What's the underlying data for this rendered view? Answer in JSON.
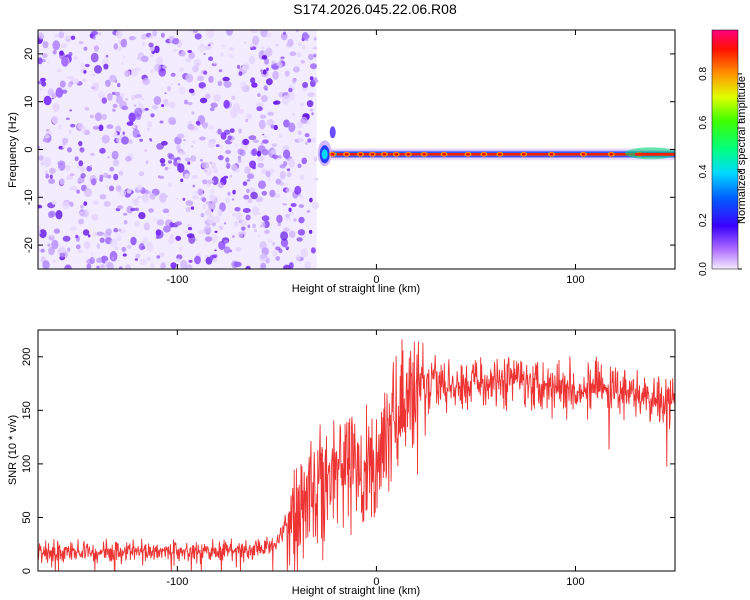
{
  "title": "S174.2026.045.22.06.R08",
  "chart_data": [
    {
      "type": "heatmap",
      "xlabel": "Height of straight line (km)",
      "ylabel": "Frequency (Hz)",
      "xlim": [
        -170,
        150
      ],
      "ylim": [
        -25,
        25
      ],
      "xticks": [
        "-100",
        "0",
        "100"
      ],
      "xtick_values": [
        -100,
        0,
        100
      ],
      "yticks": [
        "20",
        "10",
        "0",
        "-10",
        "-20"
      ],
      "ytick_values": [
        20,
        10,
        0,
        -10,
        -20
      ],
      "noise_region_x": [
        -170,
        -30
      ],
      "carrier_region_x": [
        -30,
        150
      ],
      "carrier_frequency_hz": -1,
      "colorbar": {
        "label": "Normalized spectral amplitude",
        "ticks": [
          "0.0",
          "0.2",
          "0.4",
          "0.6",
          "0.8"
        ],
        "tick_values": [
          0.0,
          0.2,
          0.4,
          0.6,
          0.8
        ],
        "range": [
          0,
          0.98
        ]
      }
    },
    {
      "type": "line",
      "xlabel": "Height of straight line (km)",
      "ylabel": "SNR (10 * v/v)",
      "xlim": [
        -170,
        150
      ],
      "ylim": [
        0,
        225
      ],
      "xticks": [
        "-100",
        "0",
        "100"
      ],
      "xtick_values": [
        -100,
        0,
        100
      ],
      "yticks": [
        "200",
        "150",
        "100",
        "50",
        "0"
      ],
      "ytick_values": [
        200,
        150,
        100,
        50,
        0
      ],
      "series": [
        {
          "name": "SNR",
          "color": "#ee3333",
          "x": [
            -170,
            -150,
            -120,
            -90,
            -60,
            -50,
            -40,
            -30,
            -20,
            -10,
            -5,
            0,
            10,
            20,
            30,
            50,
            70,
            90,
            110,
            130,
            150
          ],
          "values": [
            18,
            18,
            19,
            18,
            20,
            28,
            60,
            80,
            95,
            95,
            90,
            100,
            150,
            165,
            175,
            175,
            180,
            175,
            170,
            165,
            160
          ]
        }
      ]
    }
  ],
  "colors": {
    "line": "#ee3333",
    "noise": "#7a2cff",
    "background": "#ffffff"
  }
}
